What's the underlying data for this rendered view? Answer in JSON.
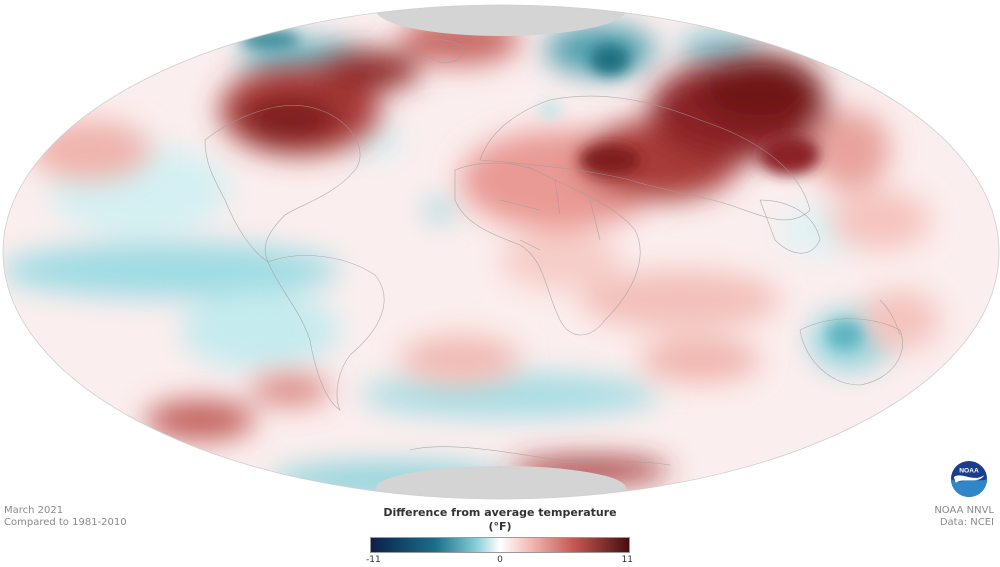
{
  "map": {
    "projection": "Hammer-Aitoff",
    "pole_mask_color": "#d4d4d4",
    "ocean_neutral_color": "#ffffff",
    "anomaly_warm_color": "#8b1a1a",
    "anomaly_cool_color": "#1b7c8c"
  },
  "caption_left": {
    "line1": "March 2021",
    "line2": "Compared to 1981-2010"
  },
  "caption_right": {
    "line1": "NOAA NNVL",
    "line2": "Data: NCEI"
  },
  "legend": {
    "title": "Difference from average temperature (°F)",
    "min": "-11",
    "mid": "0",
    "max": "11",
    "colors": [
      "#0b1f4a",
      "#1b6f88",
      "#7ec9d4",
      "#ffffff",
      "#f2b9b2",
      "#c95a55",
      "#4a0d10"
    ]
  },
  "logo": {
    "text": "NOAA",
    "icon": "noaa-logo-icon",
    "colors": [
      "#1a3d8f",
      "#2f86c8",
      "#ffffff"
    ]
  }
}
